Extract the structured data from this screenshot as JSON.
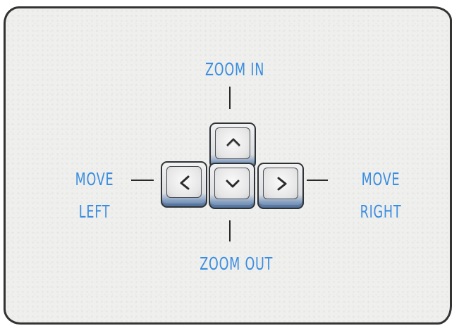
{
  "labels": {
    "zoom_in": "ZOOM IN",
    "zoom_out": "ZOOM OUT",
    "move_left_1": "MOVE",
    "move_left_2": "LEFT",
    "move_right_1": "MOVE",
    "move_right_2": "RIGHT"
  },
  "keys": {
    "up_icon": "arrow-up-icon",
    "left_icon": "arrow-left-icon",
    "down_icon": "arrow-down-icon",
    "right_icon": "arrow-right-icon"
  },
  "colors": {
    "label": "#3a8de0",
    "card_background": "#efefed",
    "outline": "#333333",
    "key_bottom": "#5e7ea8"
  }
}
